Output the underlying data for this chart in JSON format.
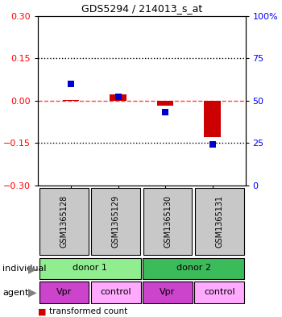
{
  "title": "GDS5294 / 214013_s_at",
  "samples": [
    "GSM1365128",
    "GSM1365129",
    "GSM1365130",
    "GSM1365131"
  ],
  "red_bars": [
    0.002,
    0.022,
    -0.018,
    -0.13
  ],
  "blue_dots": [
    0.06,
    0.015,
    -0.042,
    -0.155
  ],
  "ylim": [
    -0.3,
    0.3
  ],
  "yticks_left": [
    -0.3,
    -0.15,
    0.0,
    0.15,
    0.3
  ],
  "yticks_right": [
    0,
    25,
    50,
    75,
    100
  ],
  "hlines_dotted": [
    0.15,
    -0.15
  ],
  "hline_zero": 0.0,
  "bar_width": 0.35,
  "blue_marker_size": 6,
  "red_color": "#CC0000",
  "blue_color": "#0000CC",
  "zero_line_color": "#FF4444",
  "bg_sample_color": "#C8C8C8",
  "bg_donor1_color": "#90EE90",
  "bg_donor2_color": "#3CBB5A",
  "bg_agent_vpr": "#CC44CC",
  "bg_agent_control": "#FFAAFF",
  "agent_labels": [
    "Vpr",
    "control",
    "Vpr",
    "control"
  ],
  "donor_groups": [
    {
      "label": "donor 1",
      "cols": [
        0,
        1
      ]
    },
    {
      "label": "donor 2",
      "cols": [
        2,
        3
      ]
    }
  ]
}
